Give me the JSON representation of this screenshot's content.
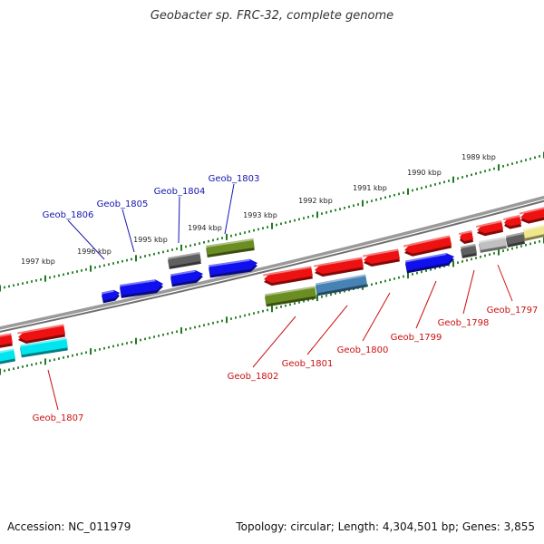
{
  "title": "Geobacter sp. FRC-32, complete genome",
  "footer": {
    "accession": "Accession: NC_011979",
    "summary": "Topology: circular; Length: 4,304,501 bp; Genes: 3,855"
  },
  "colors": {
    "backbone": "#808080",
    "tick": "#1e7a1e",
    "kbp_label": "#222222",
    "gene_label_blue": "#1515b0",
    "gene_label_red": "#cc1111",
    "red": "#ee1111",
    "blue": "#1010ee",
    "olive": "#6b8e23",
    "steel": "#4682b4",
    "gray": "#606060",
    "lightgray": "#c0c0c0",
    "cyan": "#00e5ee",
    "khaki": "#f0e68c"
  },
  "chart_data": {
    "type": "genome-map",
    "kbp_labels": [
      "1989 kbp",
      "1990 kbp",
      "1991 kbp",
      "1992 kbp",
      "1993 kbp",
      "1994 kbp",
      "1995 kbp",
      "1996 kbp",
      "1997 kbp"
    ],
    "gene_labels": [
      {
        "name": "Geob_1803",
        "strand": "upper"
      },
      {
        "name": "Geob_1804",
        "strand": "upper"
      },
      {
        "name": "Geob_1805",
        "strand": "upper"
      },
      {
        "name": "Geob_1806",
        "strand": "upper"
      },
      {
        "name": "Geob_1807",
        "strand": "lower"
      },
      {
        "name": "Geob_1802",
        "strand": "lower"
      },
      {
        "name": "Geob_1801",
        "strand": "lower"
      },
      {
        "name": "Geob_1800",
        "strand": "lower"
      },
      {
        "name": "Geob_1799",
        "strand": "lower"
      },
      {
        "name": "Geob_1798",
        "strand": "lower"
      },
      {
        "name": "Geob_1797",
        "strand": "lower"
      }
    ]
  }
}
